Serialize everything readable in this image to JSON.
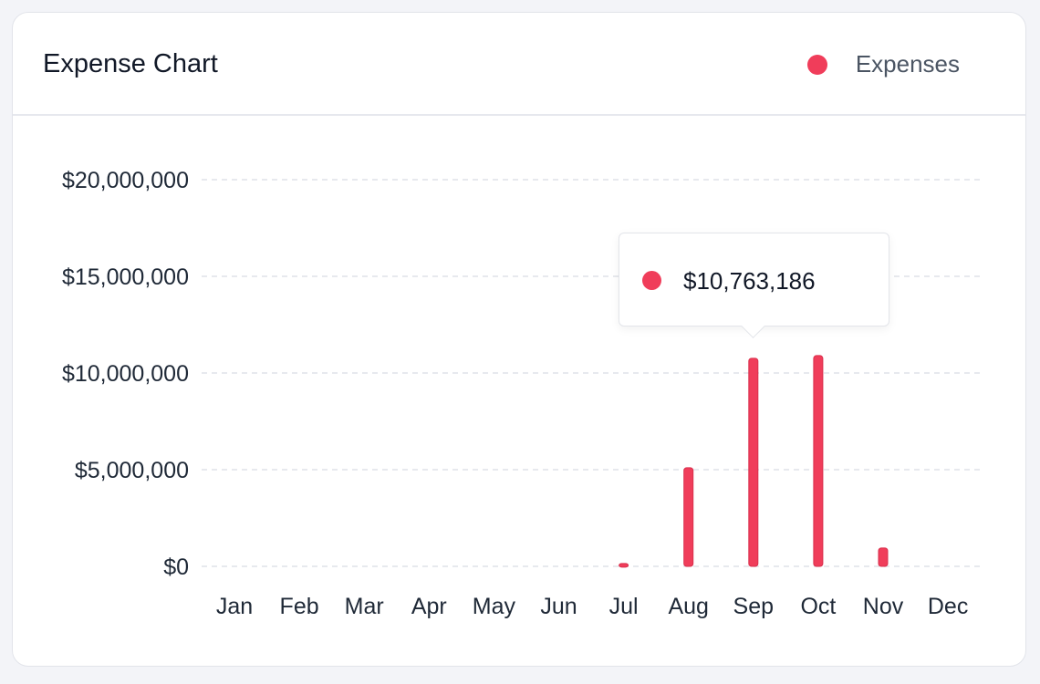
{
  "card": {
    "title": "Expense Chart"
  },
  "colors": {
    "expenses": "#f03d5a",
    "grid": "#dfe2e8",
    "axis_text": "#1f2937"
  },
  "chart_data": {
    "type": "bar",
    "title": "Expense Chart",
    "xlabel": "",
    "ylabel": "",
    "categories": [
      "Jan",
      "Feb",
      "Mar",
      "Apr",
      "May",
      "Jun",
      "Jul",
      "Aug",
      "Sep",
      "Oct",
      "Nov",
      "Dec"
    ],
    "series": [
      {
        "name": "Expenses",
        "values": [
          0,
          0,
          0,
          0,
          0,
          0,
          150000,
          5100000,
          10763186,
          10900000,
          950000,
          0
        ]
      }
    ],
    "ylim": [
      0,
      20000000
    ],
    "yticks": [
      0,
      5000000,
      10000000,
      15000000,
      20000000
    ],
    "ytick_labels": [
      "$0",
      "$5,000,000",
      "$10,000,000",
      "$15,000,000",
      "$20,000,000"
    ],
    "grid": true,
    "legend": "top-right",
    "tooltip": {
      "category": "Sep",
      "value_label": "$10,763,186"
    }
  }
}
